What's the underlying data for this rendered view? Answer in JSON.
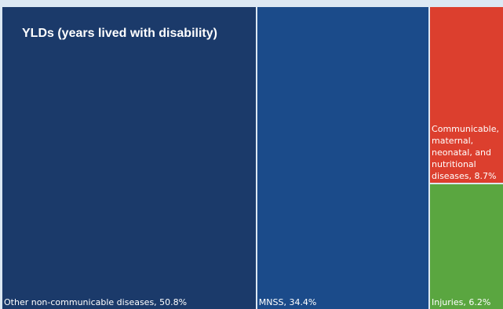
{
  "chart_data": {
    "type": "treemap",
    "title": "YLDs (years lived with disability)",
    "series": [
      {
        "label": "Other non-communicable diseases, 50.8%",
        "name": "Other non-communicable diseases",
        "value": 50.8,
        "color": "#1b3a6a"
      },
      {
        "label": "MNSS, 34.4%",
        "name": "MNSS",
        "value": 34.4,
        "color": "#1b4b8a"
      },
      {
        "label": "Communicable, maternal, neonatal, and nutritional diseases, 8.7%",
        "name": "Communicable, maternal, neonatal, and nutritional diseases",
        "value": 8.7,
        "color": "#dc3f2e"
      },
      {
        "label": "Injuries, 6.2%",
        "name": "Injuries",
        "value": 6.2,
        "color": "#5aa640"
      }
    ],
    "background_color": "#dce8f3"
  }
}
